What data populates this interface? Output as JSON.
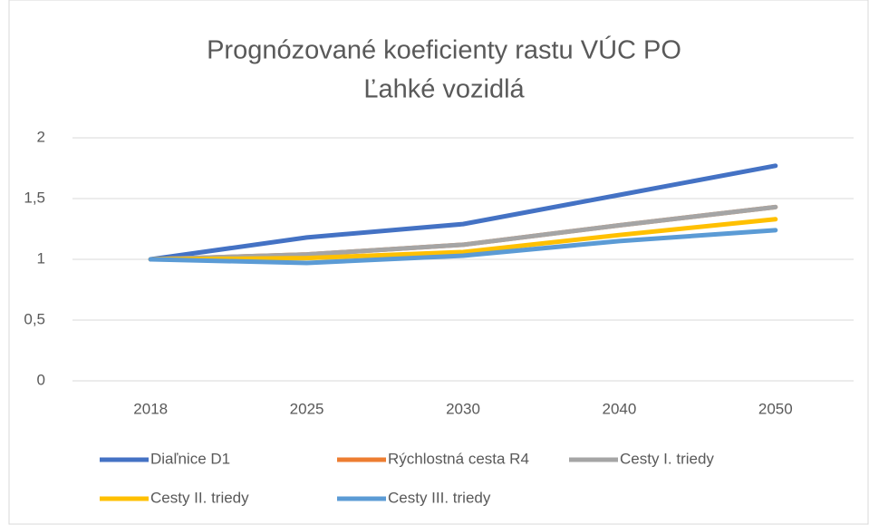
{
  "chart_data": {
    "type": "line",
    "title": "Prognózované koeficienty rastu VÚC PO",
    "subtitle": "Ľahké vozidlá",
    "categories": [
      "2018",
      "2025",
      "2030",
      "2040",
      "2050"
    ],
    "series": [
      {
        "name": "Diaľnice D1",
        "color": "#4472c4",
        "values": [
          1,
          1.18,
          1.29,
          1.53,
          1.77
        ]
      },
      {
        "name": "Rýchlostná cesta R4",
        "color": "#ed7d31",
        "values": [
          1,
          1.04,
          1.12,
          1.28,
          1.43
        ]
      },
      {
        "name": "Cesty I. triedy",
        "color": "#a5a5a5",
        "values": [
          1,
          1.04,
          1.12,
          1.28,
          1.43
        ]
      },
      {
        "name": "Cesty II. triedy",
        "color": "#ffc000",
        "values": [
          1,
          1.01,
          1.06,
          1.2,
          1.33
        ]
      },
      {
        "name": "Cesty III. triedy",
        "color": "#5b9bd5",
        "values": [
          1,
          0.97,
          1.03,
          1.15,
          1.24
        ]
      }
    ],
    "ylim": [
      0,
      2
    ],
    "yticks": [
      0,
      {
        "value": 0.5,
        "label": "0,5"
      },
      1,
      {
        "value": 1.5,
        "label": "1,5"
      },
      2
    ],
    "grid": true,
    "legend": "bottom"
  }
}
